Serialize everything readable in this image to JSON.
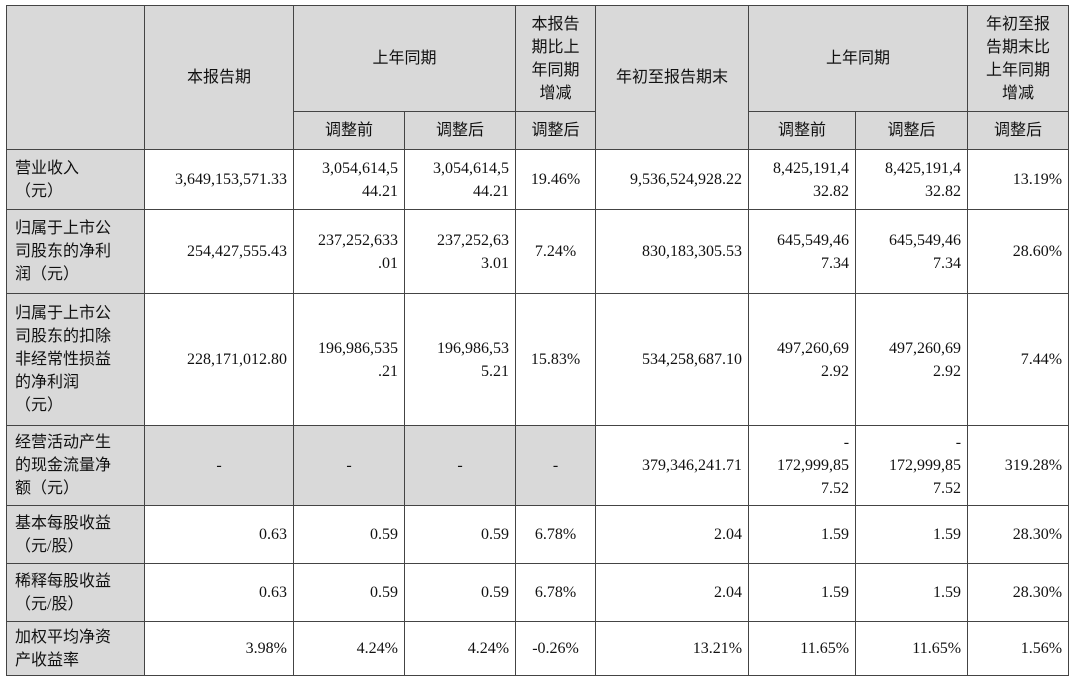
{
  "header": {
    "col_current_period": "本报告期",
    "col_prior_year_1": "上年同期",
    "col_change_current": "本报告\n期比上\n年同期\n增减",
    "col_ytd": "年初至报告期末",
    "col_prior_year_2": "上年同期",
    "col_change_ytd": "年初至报\n告期末比\n上年同期\n增减",
    "sub_before": "调整前",
    "sub_after": "调整后",
    "sub_change_after": "调整后",
    "sub_before_2": "调整前",
    "sub_after_2": "调整后",
    "sub_change_after_2": "调整后"
  },
  "rows": [
    {
      "label": "营业收入\n（元）",
      "cur": "3,649,153,571.33",
      "py_before": "3,054,614,5\n44.21",
      "py_after": "3,054,614,5\n44.21",
      "chg": "19.46%",
      "ytd": "9,536,524,928.22",
      "pytd_before": "8,425,191,4\n32.82",
      "pytd_after": "8,425,191,4\n32.82",
      "ytd_chg": "13.19%"
    },
    {
      "label": "归属于上市公\n司股东的净利\n润（元）",
      "cur": "254,427,555.43",
      "py_before": "237,252,633\n.01",
      "py_after": "237,252,63\n3.01",
      "chg": "7.24%",
      "ytd": "830,183,305.53",
      "pytd_before": "645,549,46\n7.34",
      "pytd_after": "645,549,46\n7.34",
      "ytd_chg": "28.60%"
    },
    {
      "label": "归属于上市公\n司股东的扣除\n非经常性损益\n的净利润\n（元）",
      "cur": "228,171,012.80",
      "py_before": "196,986,535\n.21",
      "py_after": "196,986,53\n5.21",
      "chg": "15.83%",
      "ytd": "534,258,687.10",
      "pytd_before": "497,260,69\n2.92",
      "pytd_after": "497,260,69\n2.92",
      "ytd_chg": "7.44%"
    },
    {
      "label": "经营活动产生\n的现金流量净\n额（元）",
      "cur": "-",
      "py_before": "-",
      "py_after": "-",
      "chg": "-",
      "ytd": "379,346,241.71",
      "pytd_before": "-\n172,999,85\n7.52",
      "pytd_after": "-\n172,999,85\n7.52",
      "ytd_chg": "319.28%"
    },
    {
      "label": "基本每股收益\n（元/股）",
      "cur": "0.63",
      "py_before": "0.59",
      "py_after": "0.59",
      "chg": "6.78%",
      "ytd": "2.04",
      "pytd_before": "1.59",
      "pytd_after": "1.59",
      "ytd_chg": "28.30%"
    },
    {
      "label": "稀释每股收益\n（元/股）",
      "cur": "0.63",
      "py_before": "0.59",
      "py_after": "0.59",
      "chg": "6.78%",
      "ytd": "2.04",
      "pytd_before": "1.59",
      "pytd_after": "1.59",
      "ytd_chg": "28.30%"
    },
    {
      "label": "加权平均净资\n产收益率",
      "cur": "3.98%",
      "py_before": "4.24%",
      "py_after": "4.24%",
      "chg": "-0.26%",
      "ytd": "13.21%",
      "pytd_before": "11.65%",
      "pytd_after": "11.65%",
      "ytd_chg": "1.56%"
    }
  ]
}
